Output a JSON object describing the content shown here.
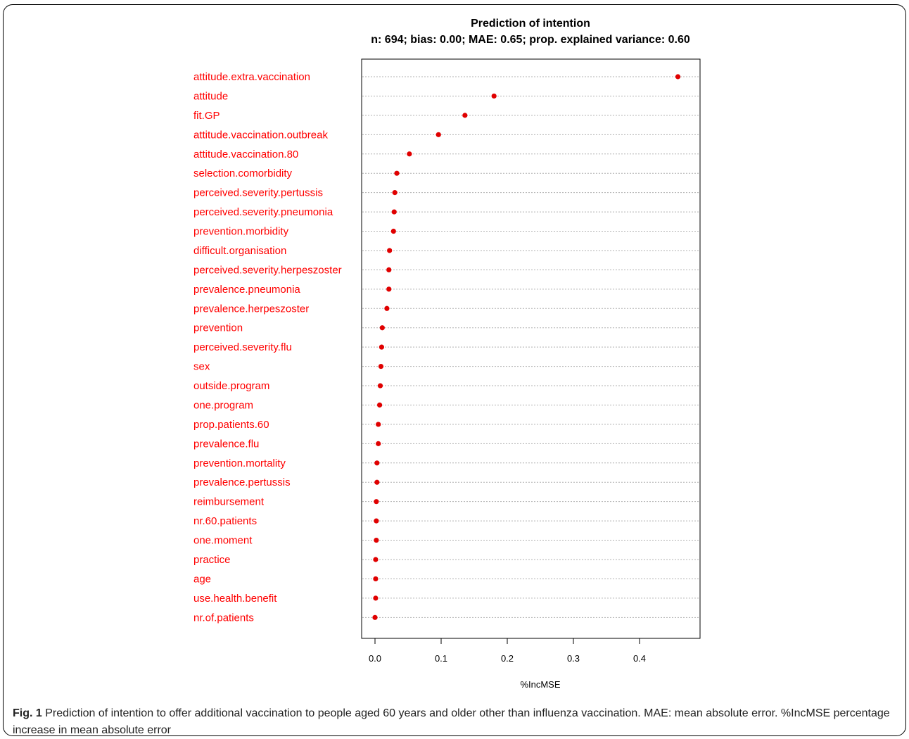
{
  "chart_data": {
    "type": "scatter",
    "title": "Prediction of intention",
    "subtitle": "n: 694; bias: 0.00; MAE: 0.65; prop. explained variance: 0.60",
    "xlabel": "%IncMSE",
    "ylabel": "",
    "xlim": [
      -0.02,
      0.47
    ],
    "xticks": [
      0.0,
      0.1,
      0.2,
      0.3,
      0.4
    ],
    "xtick_labels": [
      "0.0",
      "0.1",
      "0.2",
      "0.3",
      "0.4"
    ],
    "grid": "horizontal dotted lines per variable",
    "point_color": "#e00000",
    "label_color": "#ff0000",
    "categories": [
      "attitude.extra.vaccination",
      "attitude",
      "fit.GP",
      "attitude.vaccination.outbreak",
      "attitude.vaccination.80",
      "selection.comorbidity",
      "perceived.severity.pertussis",
      "perceived.severity.pneumonia",
      "prevention.morbidity",
      "difficult.organisation",
      "perceived.severity.herpeszoster",
      "prevalence.pneumonia",
      "prevalence.herpeszoster",
      "prevention",
      "perceived.severity.flu",
      "sex",
      "outside.program",
      "one.program",
      "prop.patients.60",
      "prevalence.flu",
      "prevention.mortality",
      "prevalence.pertussis",
      "reimbursement",
      "nr.60.patients",
      "one.moment",
      "practice",
      "age",
      "use.health.benefit",
      "nr.of.patients"
    ],
    "values": [
      0.458,
      0.18,
      0.136,
      0.096,
      0.052,
      0.033,
      0.03,
      0.029,
      0.028,
      0.022,
      0.021,
      0.021,
      0.018,
      0.011,
      0.01,
      0.009,
      0.008,
      0.007,
      0.005,
      0.005,
      0.003,
      0.003,
      0.002,
      0.002,
      0.002,
      0.001,
      0.001,
      0.001,
      0.0
    ]
  },
  "caption": {
    "label": "Fig. 1",
    "text": " Prediction of intention to offer additional vaccination to people aged 60 years and older other than influenza vaccination. MAE: mean absolute error. %IncMSE percentage increase in mean absolute error"
  }
}
